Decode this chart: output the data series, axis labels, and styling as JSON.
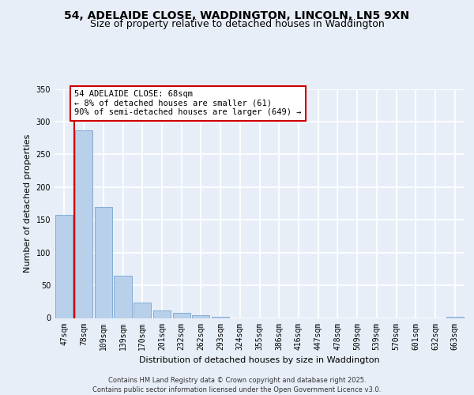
{
  "title_line1": "54, ADELAIDE CLOSE, WADDINGTON, LINCOLN, LN5 9XN",
  "title_line2": "Size of property relative to detached houses in Waddington",
  "xlabel": "Distribution of detached houses by size in Waddington",
  "ylabel": "Number of detached properties",
  "categories": [
    "47sqm",
    "78sqm",
    "109sqm",
    "139sqm",
    "170sqm",
    "201sqm",
    "232sqm",
    "262sqm",
    "293sqm",
    "324sqm",
    "355sqm",
    "386sqm",
    "416sqm",
    "447sqm",
    "478sqm",
    "509sqm",
    "539sqm",
    "570sqm",
    "601sqm",
    "632sqm",
    "663sqm"
  ],
  "values": [
    157,
    287,
    170,
    65,
    23,
    11,
    8,
    4,
    2,
    0,
    0,
    0,
    0,
    0,
    0,
    0,
    0,
    0,
    0,
    0,
    2
  ],
  "bar_color": "#b8d0ea",
  "bar_edge_color": "#6699cc",
  "vline_color": "#cc0000",
  "annotation_text": "54 ADELAIDE CLOSE: 68sqm\n← 8% of detached houses are smaller (61)\n90% of semi-detached houses are larger (649) →",
  "annotation_box_color": "#ffffff",
  "annotation_box_edge_color": "#cc0000",
  "ylim": [
    0,
    350
  ],
  "yticks": [
    0,
    50,
    100,
    150,
    200,
    250,
    300,
    350
  ],
  "background_color": "#e8eef8",
  "grid_color": "#ffffff",
  "footer_text": "Contains HM Land Registry data © Crown copyright and database right 2025.\nContains public sector information licensed under the Open Government Licence v3.0.",
  "title_fontsize": 10,
  "subtitle_fontsize": 9,
  "axis_label_fontsize": 8,
  "tick_fontsize": 7,
  "annotation_fontsize": 7.5,
  "footer_fontsize": 6
}
